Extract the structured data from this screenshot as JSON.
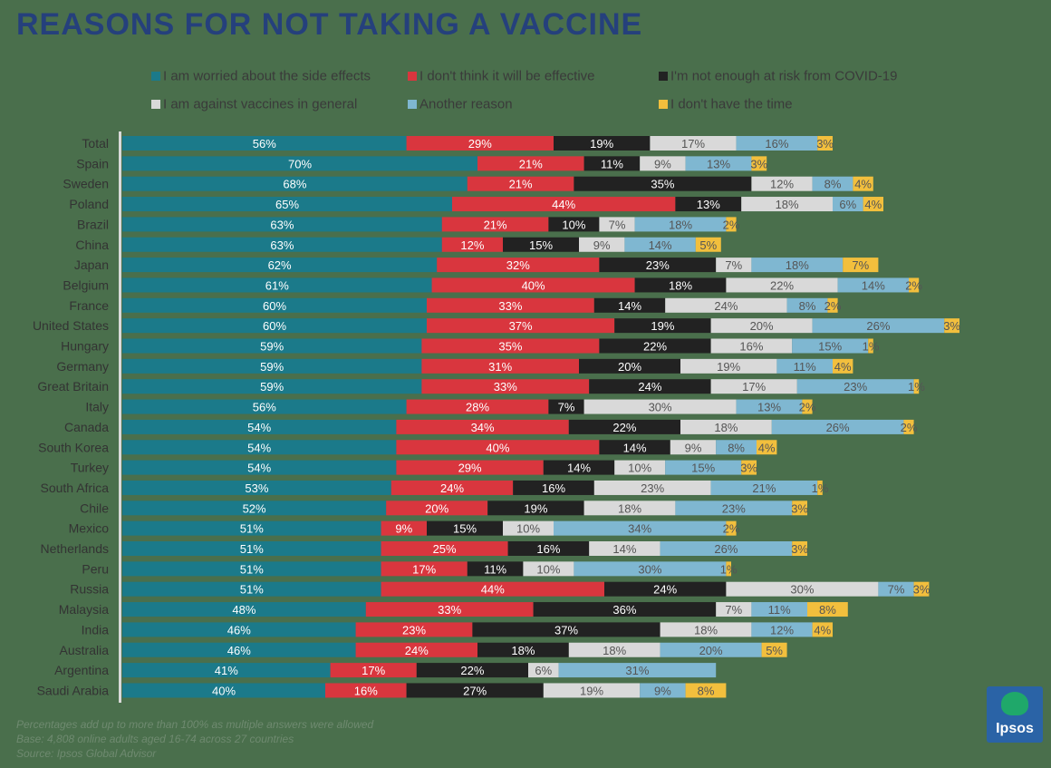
{
  "title": "REASONS FOR NOT TAKING A VACCINE",
  "footnotes": [
    "Percentages add up to more than 100% as multiple answers were allowed",
    "Base: 4,808 online adults aged 16-74 across 27 countries",
    "Source: Ipsos Global Advisor"
  ],
  "logo_text": "Ipsos",
  "chart_data": {
    "type": "bar",
    "orientation": "horizontal",
    "stacked": true,
    "title": "REASONS FOR NOT TAKING A VACCINE",
    "categories": [
      "Total",
      "Spain",
      "Sweden",
      "Poland",
      "Brazil",
      "China",
      "Japan",
      "Belgium",
      "France",
      "United States",
      "Hungary",
      "Germany",
      "Great Britain",
      "Italy",
      "Canada",
      "South Korea",
      "Turkey",
      "South Africa",
      "Chile",
      "Mexico",
      "Netherlands",
      "Peru",
      "Russia",
      "Malaysia",
      "India",
      "Australia",
      "Argentina",
      "Saudi Arabia"
    ],
    "legend_position": "top",
    "series": [
      {
        "name": "I am worried about the side effects",
        "color": "#1b7a8a",
        "values": [
          56,
          70,
          68,
          65,
          63,
          63,
          62,
          61,
          60,
          60,
          59,
          59,
          59,
          56,
          54,
          54,
          54,
          53,
          52,
          51,
          51,
          51,
          51,
          48,
          46,
          46,
          41,
          40
        ]
      },
      {
        "name": "I don't think it will be effective",
        "color": "#d9363e",
        "values": [
          29,
          21,
          21,
          44,
          21,
          12,
          32,
          40,
          33,
          37,
          35,
          31,
          33,
          28,
          34,
          40,
          29,
          24,
          20,
          9,
          25,
          17,
          44,
          33,
          23,
          24,
          17,
          16
        ]
      },
      {
        "name": "I'm not enough at risk from COVID-19",
        "color": "#222222",
        "values": [
          19,
          11,
          35,
          13,
          10,
          15,
          23,
          18,
          14,
          19,
          22,
          20,
          24,
          7,
          22,
          14,
          14,
          16,
          19,
          15,
          16,
          11,
          24,
          36,
          37,
          18,
          22,
          27
        ]
      },
      {
        "name": "I am against vaccines in general",
        "color": "#d9d9d9",
        "values": [
          17,
          9,
          12,
          18,
          7,
          9,
          7,
          22,
          24,
          20,
          16,
          19,
          17,
          30,
          18,
          9,
          10,
          23,
          18,
          10,
          14,
          10,
          30,
          7,
          18,
          18,
          6,
          19
        ]
      },
      {
        "name": "Another reason",
        "color": "#7fb7d1",
        "values": [
          16,
          13,
          8,
          6,
          18,
          14,
          18,
          14,
          8,
          26,
          15,
          11,
          23,
          13,
          26,
          8,
          15,
          21,
          23,
          34,
          26,
          30,
          7,
          11,
          12,
          20,
          31,
          9
        ]
      },
      {
        "name": "I don't have the time",
        "color": "#f2bf3d",
        "values": [
          3,
          3,
          4,
          4,
          2,
          5,
          7,
          2,
          2,
          3,
          1,
          4,
          1,
          2,
          2,
          4,
          3,
          1,
          3,
          2,
          3,
          1,
          3,
          8,
          4,
          5,
          null,
          8
        ]
      }
    ]
  }
}
